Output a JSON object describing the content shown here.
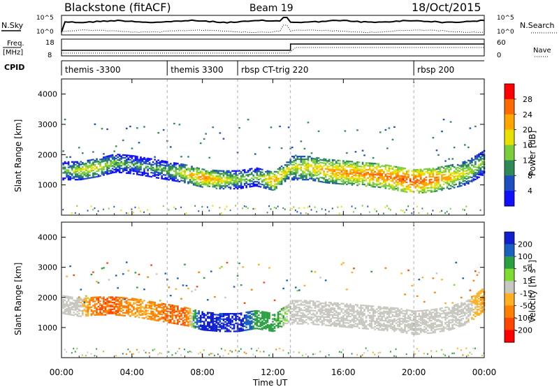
{
  "header": {
    "station": "Blackstone (fitACF)",
    "beam": "Beam 19",
    "date": "18/Oct/2015"
  },
  "summary_panels": {
    "noise_left_label": "N.Sky",
    "noise_right_label": "N.Search",
    "noise_ticks_left": [
      "10^5",
      "10^0"
    ],
    "noise_ticks_right": [
      "10^5",
      "10^0"
    ],
    "freq_label_line1": "Freq.",
    "freq_label_line2": "[MHz]",
    "freq_ticks": [
      "18",
      "8"
    ],
    "nave_label": "Nave",
    "nave_ticks": [
      "60",
      "0"
    ],
    "cpid_label": "CPID",
    "cpid_segments": [
      {
        "label": "themis -3300",
        "start_hour": 0
      },
      {
        "label": "themis 3300",
        "start_hour": 6
      },
      {
        "label": "rbsp CT-trig 220",
        "start_hour": 10
      },
      {
        "label": "rbsp 200",
        "start_hour": 20
      }
    ]
  },
  "chart_data": [
    {
      "type": "heatmap",
      "panel": "power",
      "ylabel": "Slant Range [km]",
      "xlabel": "",
      "xlim": [
        0,
        24
      ],
      "ylim": [
        0,
        4500
      ],
      "y_ticks": [
        1000,
        2000,
        3000,
        4000
      ],
      "colorbar": {
        "label": "Power [dB]",
        "ticks": [
          "28",
          "24",
          "20",
          "16",
          "12",
          "8",
          "4"
        ],
        "colors": [
          "#ff0000",
          "#ff6a00",
          "#ffa500",
          "#e8e000",
          "#7ccd3c",
          "#2e8b57",
          "#1e4fc0",
          "#1010ff"
        ]
      },
      "main_echo_band": {
        "hours": [
          0,
          1,
          2,
          3,
          4,
          5,
          6,
          7,
          8,
          9,
          10,
          11,
          12,
          13,
          14,
          15,
          16,
          17,
          18,
          19,
          20,
          21,
          22,
          23,
          24
        ],
        "range_km": [
          1500,
          1500,
          1600,
          1750,
          1700,
          1600,
          1500,
          1400,
          1250,
          1200,
          1200,
          1300,
          1150,
          1600,
          1600,
          1500,
          1450,
          1400,
          1350,
          1250,
          1150,
          1200,
          1300,
          1450,
          1800
        ],
        "power_db": [
          12,
          18,
          20,
          14,
          12,
          12,
          14,
          20,
          24,
          20,
          16,
          14,
          24,
          18,
          20,
          22,
          24,
          24,
          26,
          26,
          28,
          26,
          22,
          18,
          14
        ]
      }
    },
    {
      "type": "heatmap",
      "panel": "velocity",
      "ylabel": "Slant Range [km]",
      "xlabel": "Time UT",
      "xlim": [
        0,
        24
      ],
      "ylim": [
        0,
        4500
      ],
      "y_ticks": [
        1000,
        2000,
        3000,
        4000
      ],
      "x_ticks": [
        "00:00",
        "04:00",
        "08:00",
        "12:00",
        "16:00",
        "20:00",
        "00:00"
      ],
      "colorbar": {
        "label": "Velocity [m s^-1]",
        "ticks": [
          "200",
          "100",
          "50",
          "15",
          "-15",
          "-50",
          "-100",
          "-200"
        ],
        "colors": [
          "#1020d0",
          "#1a60c0",
          "#2aa040",
          "#7fdc30",
          "#c8c8c0",
          "#ffb020",
          "#ff8000",
          "#ff4500",
          "#ff0000"
        ]
      },
      "main_echo_band": {
        "hours": [
          0,
          1,
          2,
          3,
          4,
          5,
          6,
          7,
          8,
          9,
          10,
          11,
          12,
          13,
          14,
          15,
          16,
          17,
          18,
          19,
          20,
          21,
          22,
          23,
          24
        ],
        "range_km": [
          1800,
          1700,
          1750,
          1750,
          1700,
          1600,
          1500,
          1400,
          1250,
          1200,
          1200,
          1300,
          1200,
          1550,
          1550,
          1500,
          1450,
          1400,
          1350,
          1300,
          1200,
          1250,
          1350,
          1550,
          2000
        ],
        "velocity_ms": [
          0,
          0,
          -100,
          -100,
          -50,
          -50,
          -100,
          -100,
          200,
          150,
          200,
          50,
          50,
          0,
          0,
          0,
          0,
          0,
          0,
          0,
          0,
          0,
          0,
          0,
          -50
        ]
      }
    }
  ]
}
